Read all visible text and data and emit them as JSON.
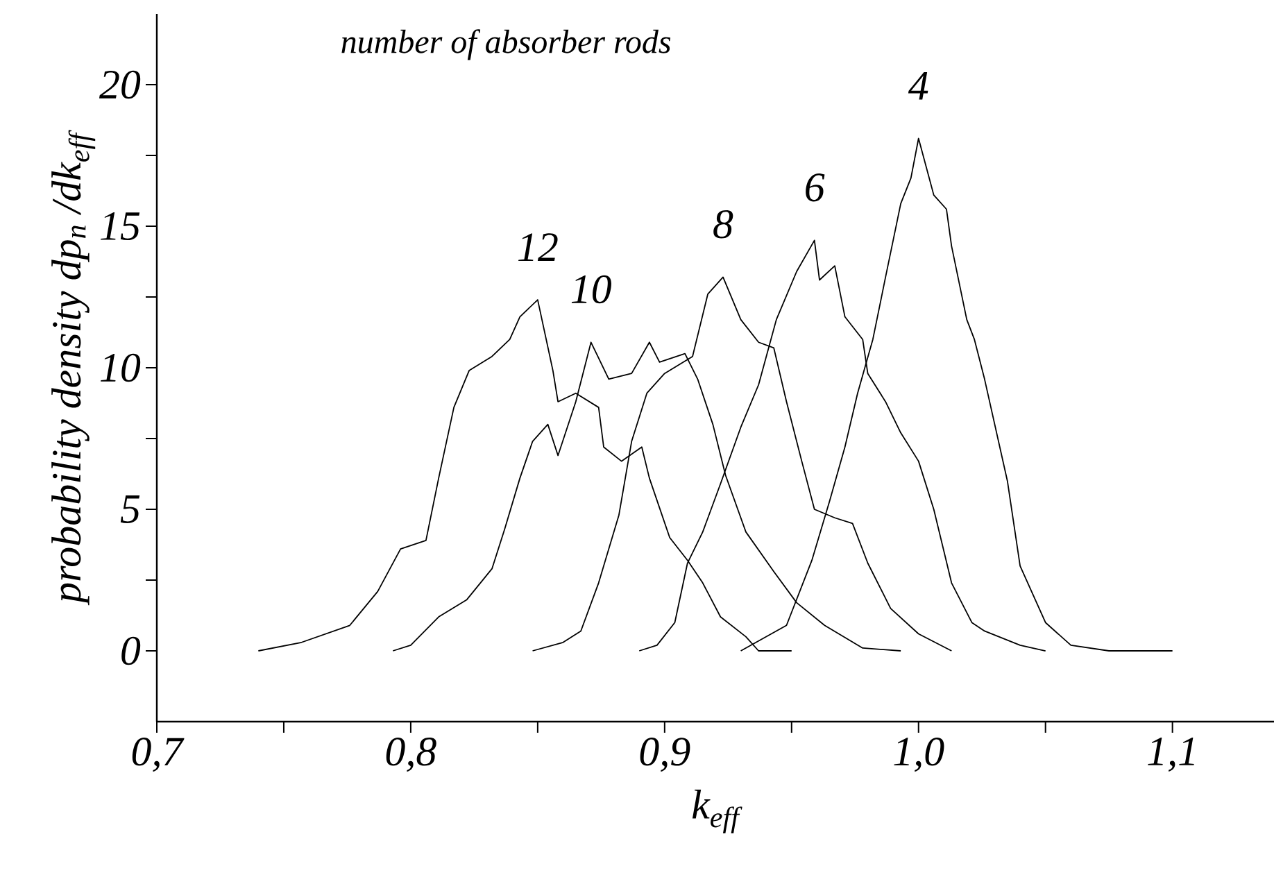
{
  "chart_data": {
    "type": "line",
    "xlabel": "k$_{eff}$",
    "ylabel": "probability density dp$_{n}$ /dk$_{eff}$",
    "annotations": [
      "number of absorber rods"
    ],
    "xlim": [
      0.7,
      1.14
    ],
    "ylim": [
      -2.5,
      22.5
    ],
    "xticks": [
      {
        "value": 0.7,
        "label": "0,7"
      },
      {
        "value": 0.75,
        "label": null
      },
      {
        "value": 0.8,
        "label": "0,8"
      },
      {
        "value": 0.85,
        "label": null
      },
      {
        "value": 0.9,
        "label": "0,9"
      },
      {
        "value": 0.95,
        "label": null
      },
      {
        "value": 1.0,
        "label": "1,0"
      },
      {
        "value": 1.05,
        "label": null
      },
      {
        "value": 1.1,
        "label": "1,1"
      }
    ],
    "yticks": [
      0,
      {
        "value": 2.5,
        "label": null
      },
      5,
      {
        "value": 7.5,
        "label": null
      },
      10,
      {
        "value": 12.5,
        "label": null
      },
      15,
      {
        "value": 17.5,
        "label": null
      },
      20
    ],
    "grid": false,
    "marker": "none",
    "line_style": "solid",
    "series": [
      {
        "name": "12",
        "color": "#000000",
        "x": [
          0.74,
          0.757,
          0.776,
          0.787,
          0.796,
          0.806,
          0.811,
          0.817,
          0.823,
          0.832,
          0.839,
          0.843,
          0.85,
          0.856,
          0.858,
          0.865,
          0.874,
          0.876,
          0.883,
          0.891,
          0.894,
          0.902,
          0.909,
          0.915,
          0.922,
          0.932,
          0.937,
          0.95
        ],
        "values": [
          0,
          0.3,
          0.9,
          2.1,
          3.6,
          3.9,
          6.1,
          8.6,
          9.9,
          10.4,
          11.0,
          11.8,
          12.4,
          9.9,
          8.8,
          9.1,
          8.6,
          7.2,
          6.7,
          7.2,
          6.1,
          4.0,
          3.2,
          2.4,
          1.2,
          0.5,
          0,
          0
        ]
      },
      {
        "name": "10",
        "color": "#000000",
        "x": [
          0.793,
          0.8,
          0.811,
          0.822,
          0.832,
          0.837,
          0.843,
          0.848,
          0.854,
          0.858,
          0.865,
          0.871,
          0.878,
          0.887,
          0.894,
          0.898,
          0.908,
          0.913,
          0.919,
          0.924,
          0.932,
          0.943,
          0.952,
          0.963,
          0.978,
          0.993
        ],
        "values": [
          0,
          0.2,
          1.2,
          1.8,
          2.9,
          4.3,
          6.1,
          7.4,
          8.0,
          6.9,
          8.8,
          10.9,
          9.6,
          9.8,
          10.9,
          10.2,
          10.5,
          9.6,
          8.0,
          6.2,
          4.2,
          2.8,
          1.7,
          0.9,
          0.1,
          0
        ]
      },
      {
        "name": "8",
        "color": "#000000",
        "x": [
          0.848,
          0.86,
          0.867,
          0.874,
          0.882,
          0.887,
          0.893,
          0.9,
          0.911,
          0.917,
          0.923,
          0.93,
          0.937,
          0.943,
          0.948,
          0.954,
          0.959,
          0.967,
          0.974,
          0.98,
          0.989,
          1.0,
          1.013
        ],
        "values": [
          0,
          0.3,
          0.7,
          2.4,
          4.8,
          7.4,
          9.1,
          9.8,
          10.4,
          12.6,
          13.2,
          11.7,
          10.9,
          10.7,
          8.8,
          6.7,
          5.0,
          4.7,
          4.5,
          3.1,
          1.5,
          0.6,
          0
        ]
      },
      {
        "name": "6",
        "color": "#000000",
        "x": [
          0.89,
          0.897,
          0.904,
          0.909,
          0.915,
          0.922,
          0.93,
          0.937,
          0.944,
          0.952,
          0.959,
          0.961,
          0.967,
          0.971,
          0.978,
          0.98,
          0.987,
          0.993,
          1.0,
          1.006,
          1.013,
          1.021,
          1.026,
          1.04,
          1.05
        ],
        "values": [
          0,
          0.2,
          1.0,
          3.1,
          4.2,
          5.9,
          7.9,
          9.4,
          11.7,
          13.4,
          14.5,
          13.1,
          13.6,
          11.8,
          11.0,
          9.8,
          8.8,
          7.7,
          6.7,
          5.0,
          2.4,
          1.0,
          0.7,
          0.2,
          0
        ]
      },
      {
        "name": "4",
        "color": "#000000",
        "x": [
          0.93,
          0.948,
          0.958,
          0.965,
          0.971,
          0.976,
          0.982,
          0.987,
          0.993,
          0.997,
          1.0,
          1.006,
          1.011,
          1.013,
          1.019,
          1.022,
          1.026,
          1.035,
          1.04,
          1.05,
          1.06,
          1.075,
          1.1
        ],
        "values": [
          0,
          0.9,
          3.2,
          5.3,
          7.2,
          9.1,
          11.0,
          13.2,
          15.8,
          16.7,
          18.1,
          16.1,
          15.6,
          14.3,
          11.7,
          11.0,
          9.6,
          6.0,
          3.0,
          1.0,
          0.2,
          0,
          0
        ]
      }
    ]
  }
}
